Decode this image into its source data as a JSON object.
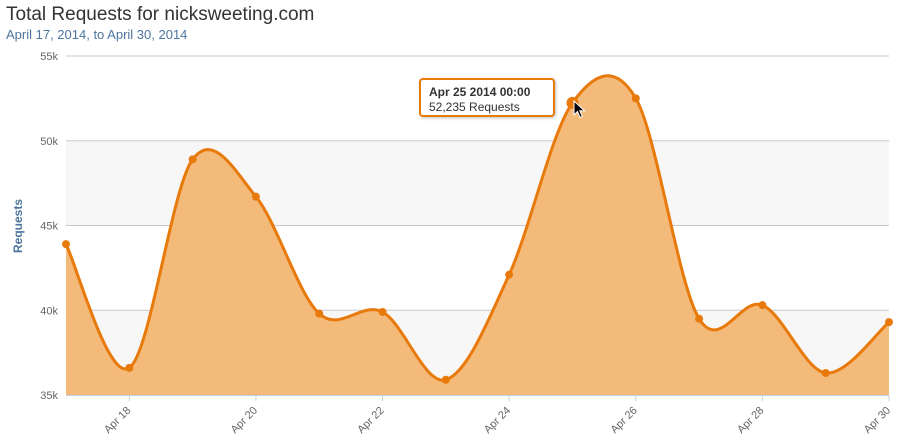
{
  "title": "Total Requests for nicksweeting.com",
  "subtitle": "April 17, 2014, to April 30, 2014",
  "tooltip": {
    "date": "Apr 25 2014 00:00",
    "value": "52,235 Requests"
  },
  "colors": {
    "series_line": "#e8790b",
    "series_fill": "#f3b673",
    "band_fill": "#f7f7f7",
    "grid": "#c8c8c8"
  },
  "chart_data": {
    "type": "area",
    "title": "Total Requests for nicksweeting.com",
    "subtitle": "April 17, 2014, to April 30, 2014",
    "xlabel": "",
    "ylabel": "Requests",
    "x": [
      "2014-04-17",
      "2014-04-18",
      "2014-04-19",
      "2014-04-20",
      "2014-04-21",
      "2014-04-22",
      "2014-04-23",
      "2014-04-24",
      "2014-04-25",
      "2014-04-26",
      "2014-04-27",
      "2014-04-28",
      "2014-04-29",
      "2014-04-30"
    ],
    "series": [
      {
        "values": [
          43900,
          36600,
          48900,
          46700,
          39800,
          39900,
          35900,
          42100,
          52235,
          52500,
          39500,
          40300,
          36300,
          39300
        ]
      }
    ],
    "ylim": [
      35000,
      55000
    ],
    "y_ticks": [
      35000,
      40000,
      45000,
      50000,
      55000
    ],
    "y_tick_labels": [
      "35k",
      "40k",
      "45k",
      "50k",
      "55k"
    ],
    "x_tick_labels": [
      "Apr 18",
      "Apr 20",
      "Apr 22",
      "Apr 24",
      "Apr 26",
      "Apr 28",
      "Apr 30"
    ],
    "x_tick_dates": [
      "2014-04-18",
      "2014-04-20",
      "2014-04-22",
      "2014-04-24",
      "2014-04-26",
      "2014-04-28",
      "2014-04-30"
    ],
    "highlighted": "2014-04-25",
    "grid": true,
    "legend": "none"
  }
}
